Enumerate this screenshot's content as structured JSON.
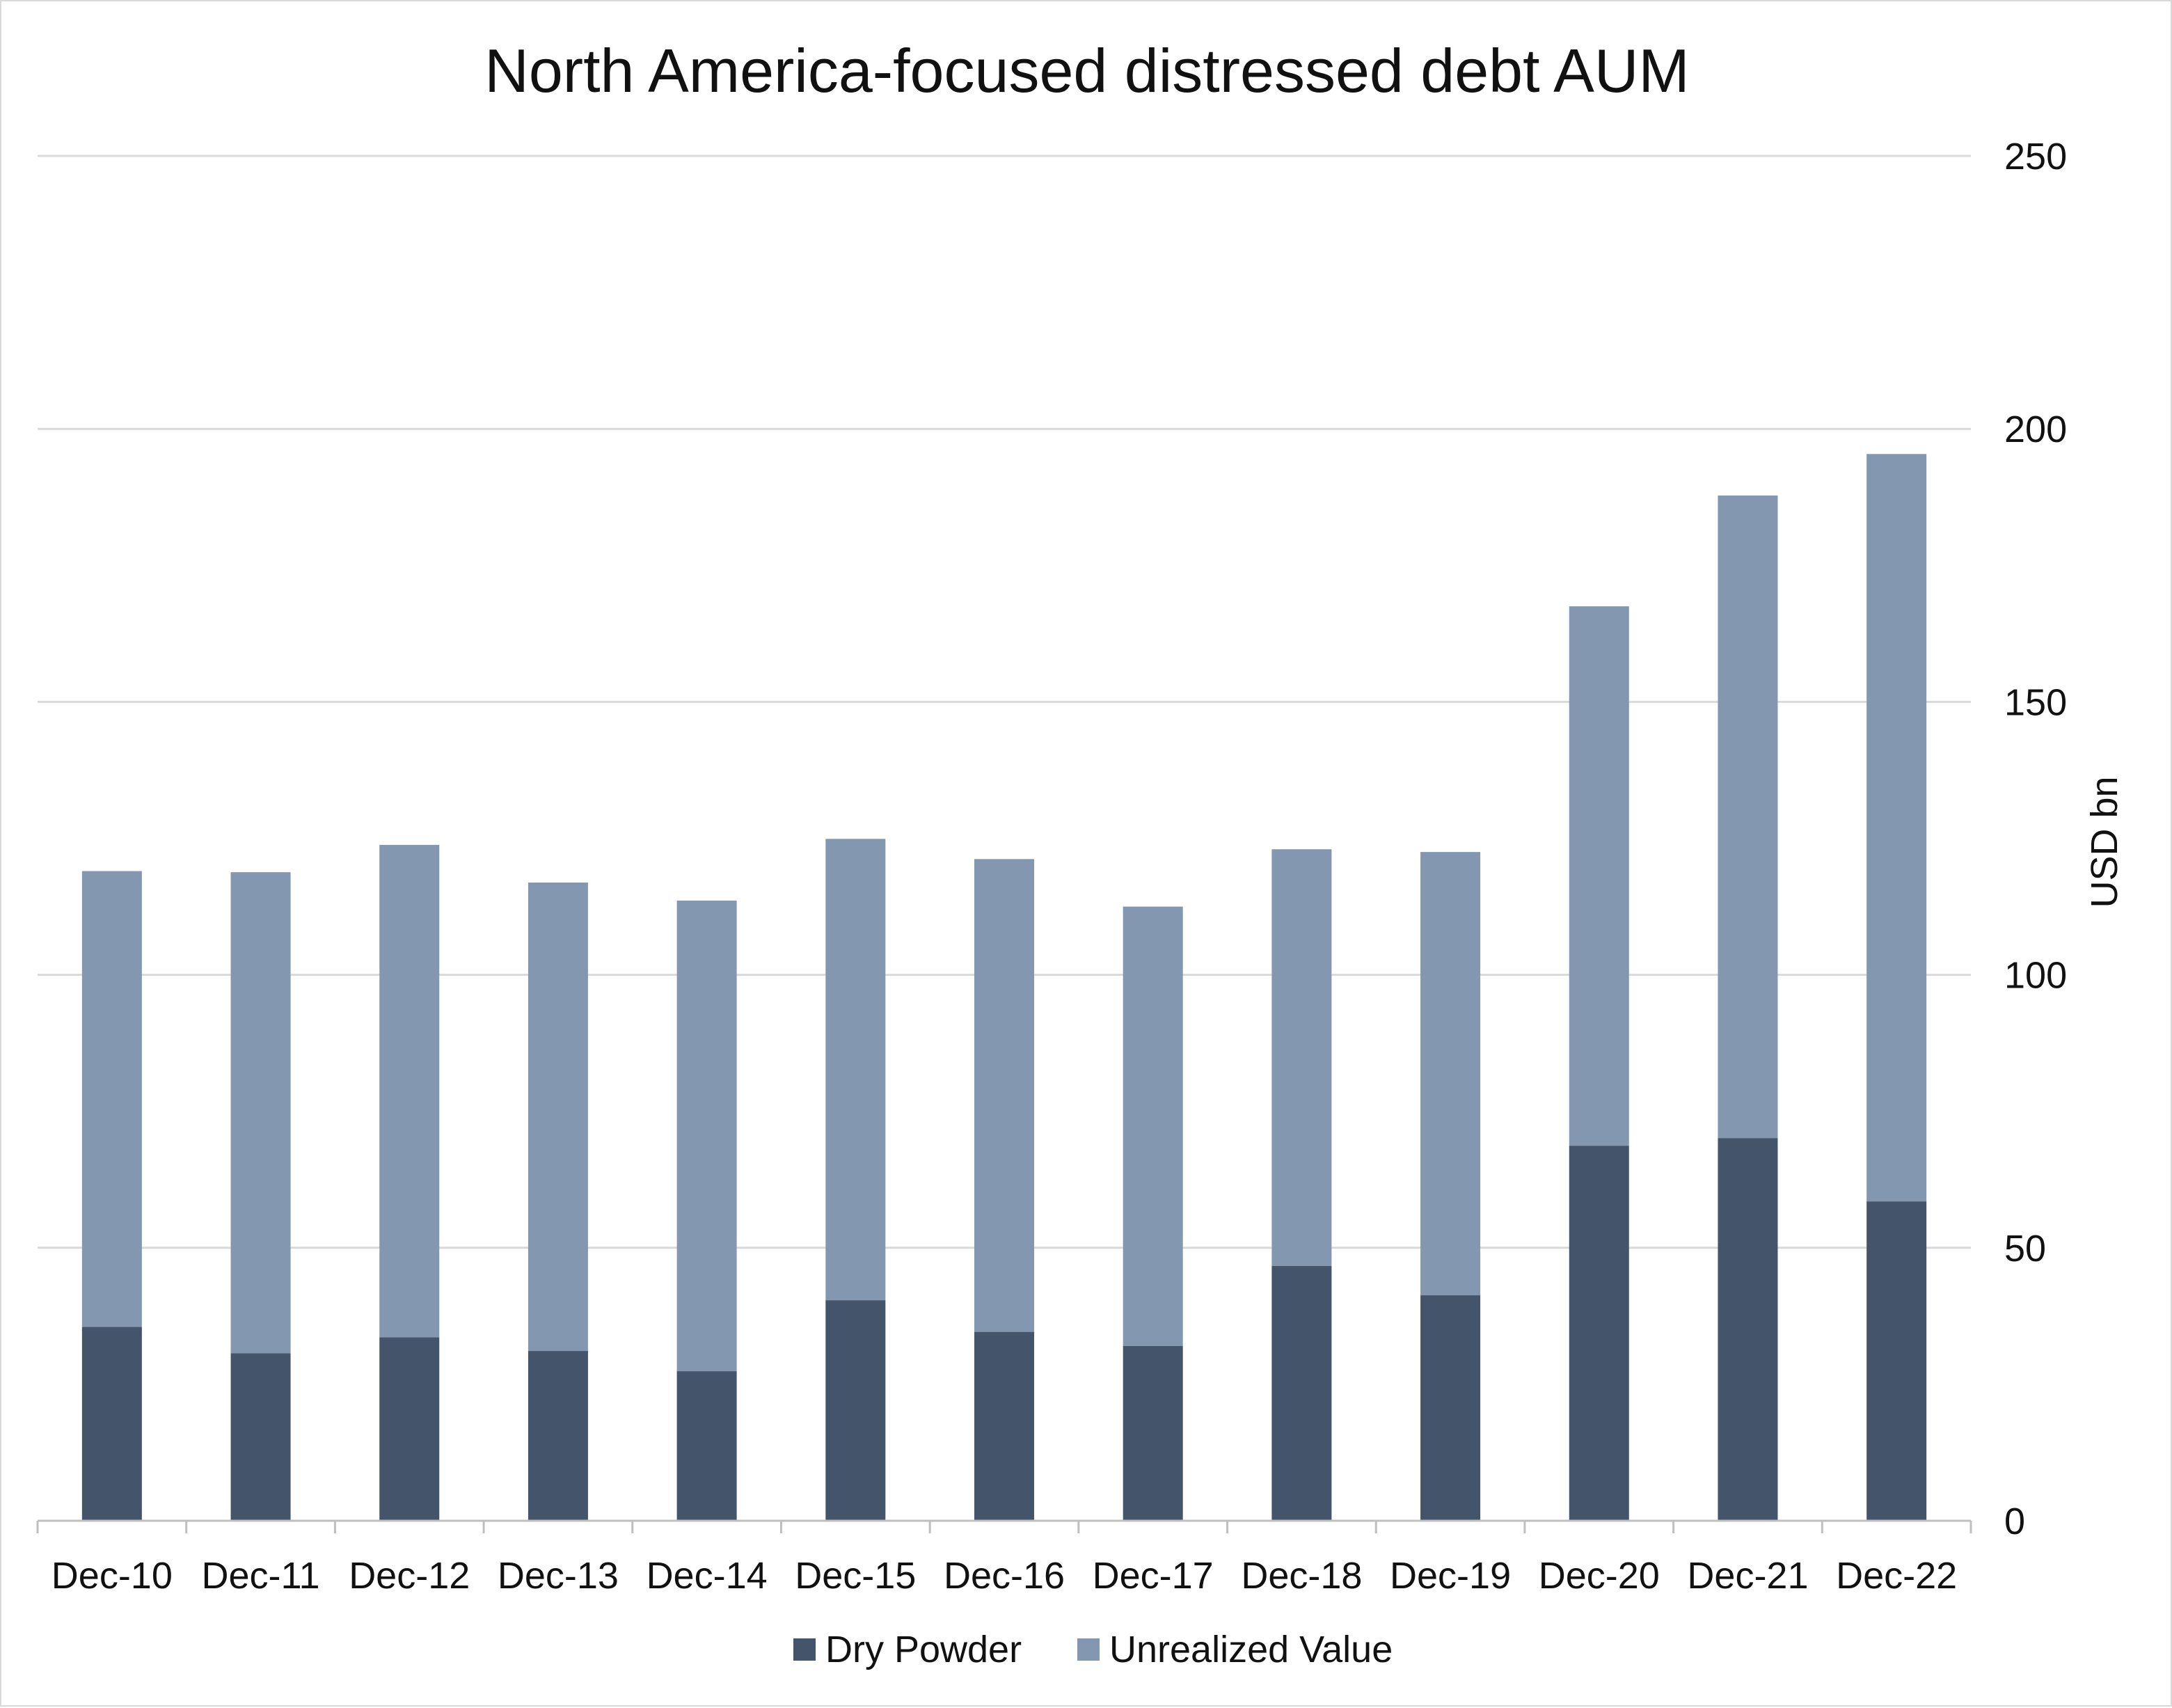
{
  "chart_data": {
    "type": "bar",
    "stacked": true,
    "title": "North America-focused distressed debt AUM",
    "xlabel": "",
    "ylabel": "USD bn",
    "y_axis_side": "right",
    "ylim": [
      0,
      250
    ],
    "yticks": [
      "0",
      "50",
      "100",
      "150",
      "200",
      "250"
    ],
    "grid": true,
    "legend_position": "bottom",
    "categories": [
      "Dec-10",
      "Dec-11",
      "Dec-12",
      "Dec-13",
      "Dec-14",
      "Dec-15",
      "Dec-16",
      "Dec-17",
      "Dec-18",
      "Dec-19",
      "Dec-20",
      "Dec-21",
      "Dec-22"
    ],
    "series": [
      {
        "name": "Dry Powder",
        "color": "#44546a",
        "values": [
          35.5,
          30.7,
          33.6,
          31.1,
          27.4,
          40.4,
          34.6,
          32.0,
          46.7,
          41.3,
          68.7,
          70.1,
          58.5
        ]
      },
      {
        "name": "Unrealized Value",
        "color": "#8497b0",
        "values": [
          83.5,
          88.1,
          90.2,
          85.8,
          86.2,
          84.5,
          86.6,
          80.5,
          76.3,
          81.2,
          98.8,
          117.7,
          136.9
        ]
      }
    ]
  }
}
